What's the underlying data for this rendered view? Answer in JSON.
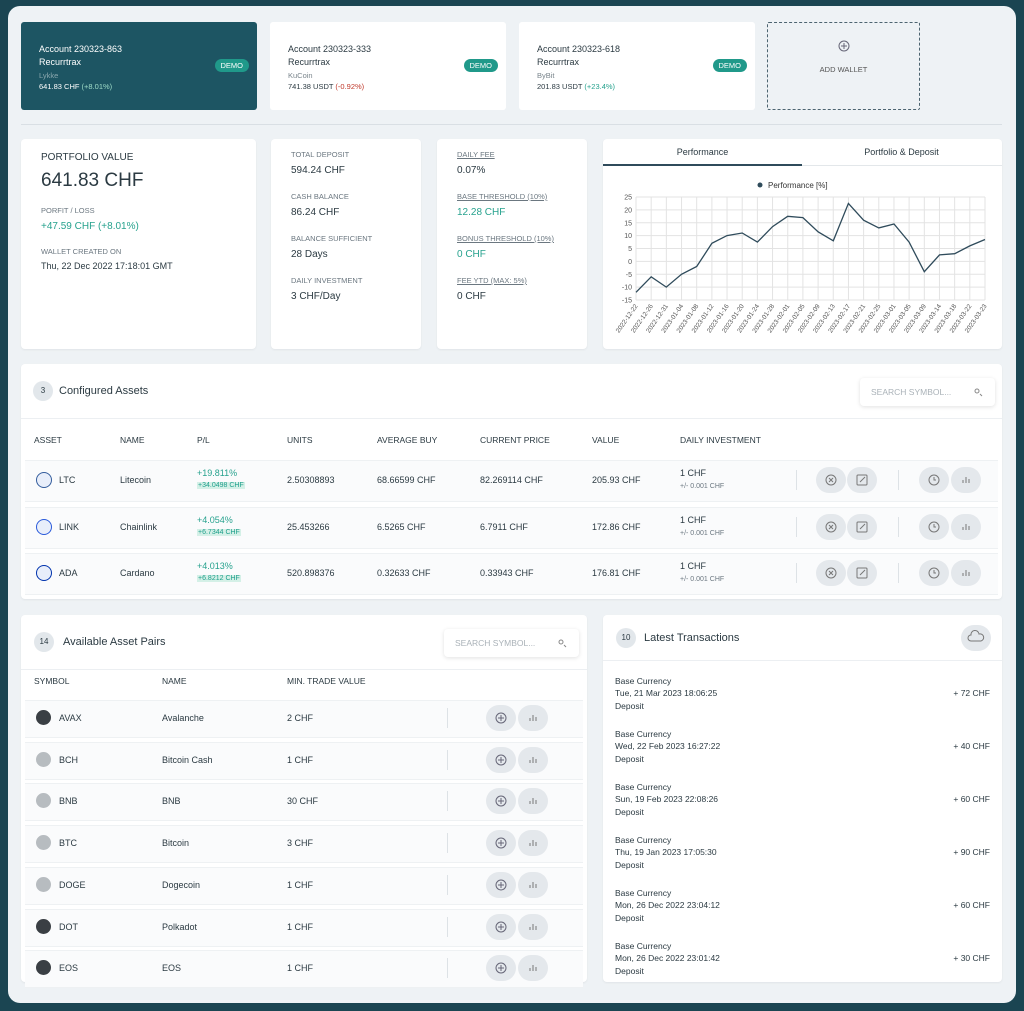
{
  "wallets": [
    {
      "account": "Account 230323-863",
      "name": "Recurrtrax",
      "exchange": "Lykke",
      "badge": "DEMO",
      "balance": "641.83 CHF",
      "change": "(+8.01%)"
    },
    {
      "account": "Account 230323-333",
      "name": "Recurrtrax",
      "exchange": "KuCoin",
      "badge": "DEMO",
      "balance": "741.38 USDT",
      "change": "(-0.92%)"
    },
    {
      "account": "Account 230323-618",
      "name": "Recurrtrax",
      "exchange": "ByBit",
      "badge": "DEMO",
      "balance": "201.83 USDT",
      "change": "(+23.4%)"
    }
  ],
  "add_wallet": "ADD WALLET",
  "portfolio": {
    "title": "PORTFOLIO VALUE",
    "value": "641.83 CHF",
    "pl_label": "PORFIT / LOSS",
    "pl_value": "+47.59 CHF (+8.01%)",
    "created_label": "WALLET CREATED ON",
    "created_value": "Thu, 22 Dec 2022 17:18:01 GMT"
  },
  "stats": [
    {
      "label": "TOTAL DEPOSIT",
      "value": "594.24 CHF"
    },
    {
      "label": "CASH BALANCE",
      "value": "86.24 CHF"
    },
    {
      "label": "BALANCE SUFFICIENT",
      "value": "28 Days"
    },
    {
      "label": "DAILY INVESTMENT",
      "value": "3 CHF/Day"
    }
  ],
  "fees": [
    {
      "label": "DAILY FEE",
      "value": "0.07%"
    },
    {
      "label": "BASE THRESHOLD (10%)",
      "value": "12.28 CHF"
    },
    {
      "label": "BONUS THRESHOLD (10%)",
      "value": "0 CHF"
    },
    {
      "label": "FEE YTD (MAX: 5%)",
      "value": "0 CHF"
    }
  ],
  "chart_tabs": [
    "Performance",
    "Portfolio & Deposit"
  ],
  "chart_data": {
    "type": "line",
    "x": [
      "2022-12-22",
      "2022-12-26",
      "2022-12-31",
      "2023-01-04",
      "2023-01-08",
      "2023-01-12",
      "2023-01-16",
      "2023-01-20",
      "2023-01-24",
      "2023-01-28",
      "2023-02-01",
      "2023-02-05",
      "2023-02-09",
      "2023-02-13",
      "2023-02-17",
      "2023-02-21",
      "2023-02-25",
      "2023-03-01",
      "2023-03-05",
      "2023-03-09",
      "2023-03-14",
      "2023-03-18",
      "2023-03-22",
      "2023-03-23"
    ],
    "series": [
      {
        "name": "Performance [%]",
        "color": "#2f4b5b",
        "values": [
          -12,
          -6,
          -10,
          -5,
          -2,
          7,
          10,
          11,
          7.5,
          13.5,
          17.5,
          17,
          11.5,
          8,
          22.5,
          16,
          13,
          14.5,
          7.5,
          -4,
          2.5,
          3,
          6,
          8.5
        ]
      }
    ],
    "ylim": [
      -15,
      25
    ],
    "yticks": [
      -15,
      -10,
      -5,
      0,
      5,
      10,
      15,
      20,
      25
    ],
    "grid": true
  },
  "assets": {
    "count": 3,
    "title": "Configured Assets",
    "search": "SEARCH SYMBOL...",
    "columns": [
      "ASSET",
      "NAME",
      "P/L",
      "UNITS",
      "AVERAGE BUY",
      "CURRENT PRICE",
      "VALUE",
      "DAILY INVESTMENT"
    ],
    "rows": [
      {
        "symbol": "LTC",
        "name": "Litecoin",
        "pl": "+19.811%",
        "pl_chf": "+34.0498 CHF",
        "units": "2.50308893",
        "avg_buy": "68.66599 CHF",
        "price": "82.269114 CHF",
        "value": "205.93 CHF",
        "daily": "1 CHF",
        "tolerance": "+/- 0.001 CHF"
      },
      {
        "symbol": "LINK",
        "name": "Chainlink",
        "pl": "+4.054%",
        "pl_chf": "+6.7344 CHF",
        "units": "25.453266",
        "avg_buy": "6.5265 CHF",
        "price": "6.7911 CHF",
        "value": "172.86 CHF",
        "daily": "1 CHF",
        "tolerance": "+/- 0.001 CHF"
      },
      {
        "symbol": "ADA",
        "name": "Cardano",
        "pl": "+4.013%",
        "pl_chf": "+6.8212 CHF",
        "units": "520.898376",
        "avg_buy": "0.32633 CHF",
        "price": "0.33943 CHF",
        "value": "176.81 CHF",
        "daily": "1 CHF",
        "tolerance": "+/- 0.001 CHF"
      }
    ]
  },
  "pairs": {
    "count": 14,
    "title": "Available Asset Pairs",
    "search": "SEARCH SYMBOL...",
    "columns": [
      "SYMBOL",
      "NAME",
      "MIN. TRADE VALUE"
    ],
    "rows": [
      {
        "symbol": "AVAX",
        "name": "Avalanche",
        "min": "2 CHF"
      },
      {
        "symbol": "BCH",
        "name": "Bitcoin Cash",
        "min": "1 CHF"
      },
      {
        "symbol": "BNB",
        "name": "BNB",
        "min": "30 CHF"
      },
      {
        "symbol": "BTC",
        "name": "Bitcoin",
        "min": "3 CHF"
      },
      {
        "symbol": "DOGE",
        "name": "Dogecoin",
        "min": "1 CHF"
      },
      {
        "symbol": "DOT",
        "name": "Polkadot",
        "min": "1 CHF"
      },
      {
        "symbol": "EOS",
        "name": "EOS",
        "min": "1 CHF"
      }
    ]
  },
  "transactions": {
    "count": 10,
    "title": "Latest Transactions",
    "rows": [
      {
        "currency": "Base Currency",
        "date": "Tue, 21 Mar 2023 18:06:25",
        "type": "Deposit",
        "amount": "+ 72 CHF"
      },
      {
        "currency": "Base Currency",
        "date": "Wed, 22 Feb 2023 16:27:22",
        "type": "Deposit",
        "amount": "+ 40 CHF"
      },
      {
        "currency": "Base Currency",
        "date": "Sun, 19 Feb 2023 22:08:26",
        "type": "Deposit",
        "amount": "+ 60 CHF"
      },
      {
        "currency": "Base Currency",
        "date": "Thu, 19 Jan 2023 17:05:30",
        "type": "Deposit",
        "amount": "+ 90 CHF"
      },
      {
        "currency": "Base Currency",
        "date": "Mon, 26 Dec 2022 23:04:12",
        "type": "Deposit",
        "amount": "+ 60 CHF"
      },
      {
        "currency": "Base Currency",
        "date": "Mon, 26 Dec 2022 23:01:42",
        "type": "Deposit",
        "amount": "+ 30 CHF"
      }
    ]
  }
}
